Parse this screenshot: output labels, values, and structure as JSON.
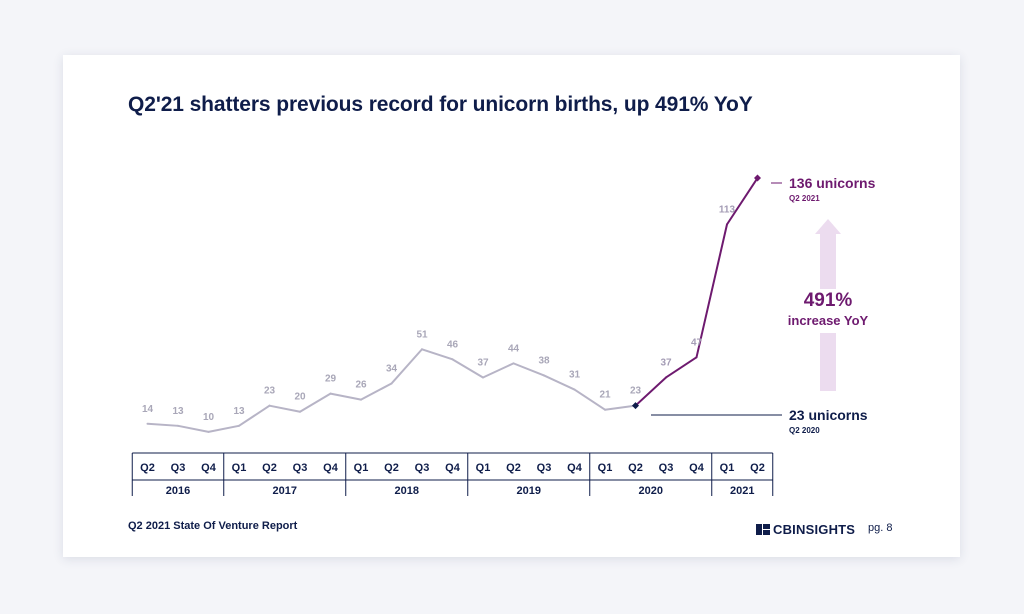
{
  "title": "Q2'21 shatters previous record for unicorn births, up 491% YoY",
  "footer": {
    "report": "Q2 2021 State Of Venture Report",
    "brand": "CBINSIGHTS",
    "page": "pg. 8"
  },
  "colors": {
    "past": "#b7b4c6",
    "recent": "#6e1a6f",
    "navy": "#0f1d4a",
    "arrow": "#ecdcef"
  },
  "annotations": {
    "end_value": "136 unicorns",
    "end_period": "Q2 2021",
    "start_value": "23 unicorns",
    "start_period": "Q2 2020",
    "increase_value": "491%",
    "increase_label": "increase YoY"
  },
  "chart_data": {
    "type": "line",
    "title": "Q2'21 shatters previous record for unicorn births, up 491% YoY",
    "x": [
      "Q2",
      "Q3",
      "Q4",
      "Q1",
      "Q2",
      "Q3",
      "Q4",
      "Q1",
      "Q2",
      "Q3",
      "Q4",
      "Q1",
      "Q2",
      "Q3",
      "Q4",
      "Q1",
      "Q2",
      "Q3",
      "Q4",
      "Q1",
      "Q2"
    ],
    "years": [
      {
        "label": "2016",
        "count": 3
      },
      {
        "label": "2017",
        "count": 4
      },
      {
        "label": "2018",
        "count": 4
      },
      {
        "label": "2019",
        "count": 4
      },
      {
        "label": "2020",
        "count": 4
      },
      {
        "label": "2021",
        "count": 2
      }
    ],
    "values": [
      14,
      13,
      10,
      13,
      23,
      20,
      29,
      26,
      34,
      51,
      46,
      37,
      44,
      38,
      31,
      21,
      23,
      37,
      47,
      113,
      136
    ],
    "highlight_start_index": 16,
    "ylim": [
      0,
      140
    ]
  }
}
